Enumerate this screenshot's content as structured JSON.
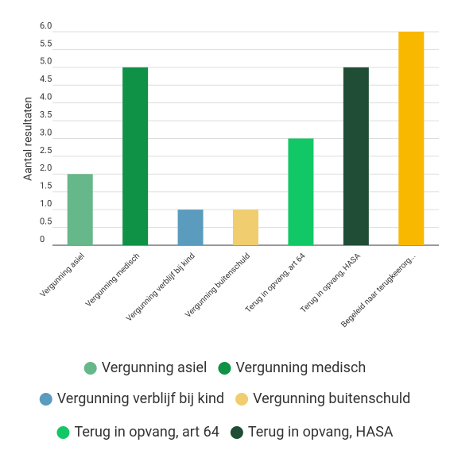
{
  "chart_data": {
    "type": "bar",
    "y_label": "Aantal resultaten",
    "categories": [
      "Vergunning asiel",
      "Vergunning medisch",
      "Vergunning verblijf bij kind",
      "Vergunning buitenschuld",
      "Terug in opvang, art 64",
      "Terug in opvang, HASA",
      "Begeleid naar terugkeerorg..."
    ],
    "values": [
      2,
      5,
      1,
      1,
      3,
      5,
      6
    ],
    "colors": [
      "#66b78a",
      "#0f9146",
      "#5b9bbd",
      "#f0cd6e",
      "#12c866",
      "#1f4d35",
      "#f9b800"
    ],
    "ylim": [
      0,
      6
    ],
    "yticks": [
      0,
      {
        "value": 0.5,
        "label": "0.5"
      },
      {
        "value": 1,
        "label": "1.0"
      },
      {
        "value": 1.5,
        "label": "1.5"
      },
      {
        "value": 2,
        "label": "2.0"
      },
      {
        "value": 2.5,
        "label": "2.5"
      },
      {
        "value": 3,
        "label": "3.0"
      },
      {
        "value": 3.5,
        "label": "3.5"
      },
      {
        "value": 4,
        "label": "4.0"
      },
      {
        "value": 4.5,
        "label": "4.5"
      },
      {
        "value": 5,
        "label": "5.0"
      },
      {
        "value": 5.5,
        "label": "5.5"
      },
      {
        "value": 6,
        "label": "6.0"
      }
    ],
    "grid": true,
    "legend": [
      "Vergunning asiel",
      "Vergunning medisch",
      "Vergunning verblijf bij kind",
      "Vergunning buitenschuld",
      "Terug in opvang, art 64",
      "Terug in opvang, HASA"
    ]
  }
}
